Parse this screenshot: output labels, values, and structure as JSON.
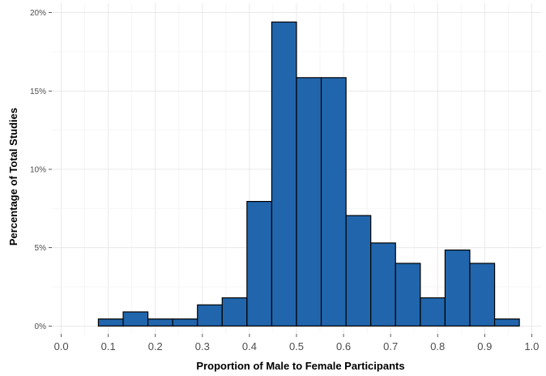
{
  "chart_data": {
    "type": "bar",
    "subtype": "histogram",
    "xlabel": "Proportion of Male to Female Participants",
    "ylabel": "Percentage of Total Studies",
    "xlim": [
      -0.02,
      1.02
    ],
    "ylim": [
      -0.5,
      20.6
    ],
    "x_ticks": [
      "0.0",
      "0.1",
      "0.2",
      "0.3",
      "0.4",
      "0.5",
      "0.6",
      "0.7",
      "0.8",
      "0.9",
      "1.0"
    ],
    "y_ticks": [
      "0%",
      "5%",
      "10%",
      "15%",
      "20%"
    ],
    "bin_width": 0.0526,
    "bins": [
      {
        "x0": 0.0263,
        "x1": 0.0789,
        "value": 0.0
      },
      {
        "x0": 0.0789,
        "x1": 0.1316,
        "value": 0.45
      },
      {
        "x0": 0.1316,
        "x1": 0.1842,
        "value": 0.9
      },
      {
        "x0": 0.1842,
        "x1": 0.2368,
        "value": 0.45
      },
      {
        "x0": 0.2368,
        "x1": 0.2895,
        "value": 0.45
      },
      {
        "x0": 0.2895,
        "x1": 0.3421,
        "value": 1.35
      },
      {
        "x0": 0.3421,
        "x1": 0.3947,
        "value": 1.8
      },
      {
        "x0": 0.3947,
        "x1": 0.4474,
        "value": 7.95
      },
      {
        "x0": 0.4474,
        "x1": 0.5,
        "value": 19.4
      },
      {
        "x0": 0.5,
        "x1": 0.5526,
        "value": 15.85
      },
      {
        "x0": 0.5526,
        "x1": 0.6053,
        "value": 15.85
      },
      {
        "x0": 0.6053,
        "x1": 0.6579,
        "value": 7.05
      },
      {
        "x0": 0.6579,
        "x1": 0.7105,
        "value": 5.3
      },
      {
        "x0": 0.7105,
        "x1": 0.7632,
        "value": 4.0
      },
      {
        "x0": 0.7632,
        "x1": 0.8158,
        "value": 1.8
      },
      {
        "x0": 0.8158,
        "x1": 0.8684,
        "value": 4.85
      },
      {
        "x0": 0.8684,
        "x1": 0.9211,
        "value": 4.0
      },
      {
        "x0": 0.9211,
        "x1": 0.9737,
        "value": 0.45
      }
    ],
    "bar_color": "#2166ac",
    "bar_edge_color": "#000000",
    "grid": true,
    "legend": "none"
  }
}
